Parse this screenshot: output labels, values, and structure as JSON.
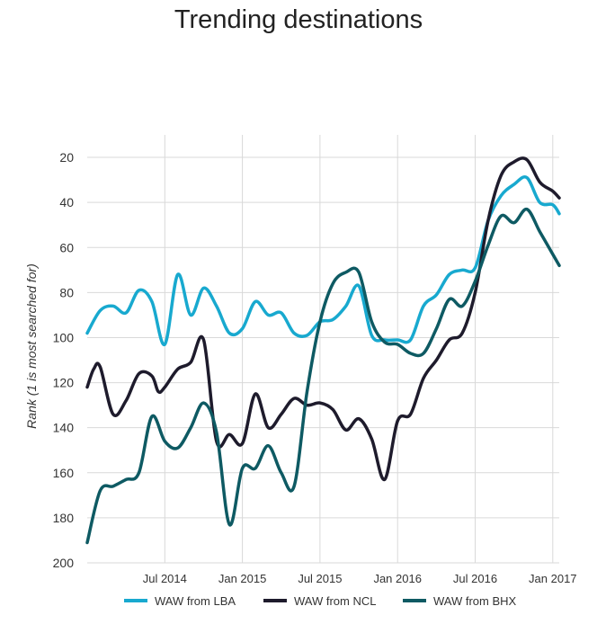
{
  "chart_data": {
    "type": "line",
    "title": "Trending destinations",
    "xlabel": "",
    "ylabel": "Rank (1 is most searched for)",
    "y_inverted": true,
    "ylim": [
      200,
      10
    ],
    "yticks": [
      20,
      40,
      60,
      80,
      100,
      120,
      140,
      160,
      180,
      200
    ],
    "xlim": [
      0,
      36.5
    ],
    "x_unit": "months since Jan 2014",
    "xticks": [
      {
        "label": "Jul 2014",
        "x": 6
      },
      {
        "label": "Jan 2015",
        "x": 12
      },
      {
        "label": "Jul 2015",
        "x": 18
      },
      {
        "label": "Jan 2016",
        "x": 24
      },
      {
        "label": "Jul 2016",
        "x": 30
      },
      {
        "label": "Jan 2017",
        "x": 36
      }
    ],
    "grid": true,
    "legend_position": "bottom",
    "series": [
      {
        "name": "WAW from LBA",
        "color": "#18A9CF",
        "points": [
          [
            0,
            98
          ],
          [
            1,
            88
          ],
          [
            2,
            86
          ],
          [
            3,
            89
          ],
          [
            4,
            79
          ],
          [
            5,
            84
          ],
          [
            6,
            103
          ],
          [
            7,
            72
          ],
          [
            8,
            90
          ],
          [
            9,
            78
          ],
          [
            10,
            86
          ],
          [
            11,
            98
          ],
          [
            12,
            96
          ],
          [
            13,
            84
          ],
          [
            14,
            90
          ],
          [
            15,
            89
          ],
          [
            16,
            98
          ],
          [
            17,
            99
          ],
          [
            18,
            93
          ],
          [
            19,
            92
          ],
          [
            20,
            86
          ],
          [
            21,
            77
          ],
          [
            22,
            99
          ],
          [
            23,
            101
          ],
          [
            24,
            101
          ],
          [
            25,
            101
          ],
          [
            26,
            86
          ],
          [
            27,
            81
          ],
          [
            28,
            72
          ],
          [
            29,
            70
          ],
          [
            30,
            69
          ],
          [
            31,
            48
          ],
          [
            32,
            37
          ],
          [
            33,
            32
          ],
          [
            34,
            29
          ],
          [
            35,
            40
          ],
          [
            36,
            41
          ],
          [
            36.5,
            45
          ]
        ]
      },
      {
        "name": "WAW from NCL",
        "color": "#1E1B2C",
        "points": [
          [
            0,
            122
          ],
          [
            0.5,
            114
          ],
          [
            1,
            113
          ],
          [
            2,
            134
          ],
          [
            3,
            128
          ],
          [
            4,
            116
          ],
          [
            5,
            117
          ],
          [
            5.5,
            124
          ],
          [
            6,
            122
          ],
          [
            7,
            114
          ],
          [
            8,
            111
          ],
          [
            9,
            101
          ],
          [
            10,
            146
          ],
          [
            11,
            143
          ],
          [
            12,
            147
          ],
          [
            13,
            125
          ],
          [
            14,
            140
          ],
          [
            15,
            134
          ],
          [
            16,
            127
          ],
          [
            17,
            130
          ],
          [
            18,
            129
          ],
          [
            19,
            132
          ],
          [
            20,
            141
          ],
          [
            21,
            136
          ],
          [
            22,
            145
          ],
          [
            23,
            163
          ],
          [
            24,
            137
          ],
          [
            25,
            134
          ],
          [
            26,
            118
          ],
          [
            27,
            110
          ],
          [
            28,
            101
          ],
          [
            29,
            98
          ],
          [
            30,
            80
          ],
          [
            31,
            48
          ],
          [
            32,
            28
          ],
          [
            33,
            22
          ],
          [
            34,
            21
          ],
          [
            35,
            31
          ],
          [
            36,
            35
          ],
          [
            36.5,
            38
          ]
        ]
      },
      {
        "name": "WAW from BHX",
        "color": "#0E5A63",
        "points": [
          [
            0,
            191
          ],
          [
            1,
            168
          ],
          [
            2,
            166
          ],
          [
            3,
            163
          ],
          [
            4,
            160
          ],
          [
            5,
            135
          ],
          [
            6,
            146
          ],
          [
            7,
            149
          ],
          [
            8,
            140
          ],
          [
            9,
            129
          ],
          [
            10,
            142
          ],
          [
            11,
            183
          ],
          [
            12,
            158
          ],
          [
            13,
            158
          ],
          [
            14,
            148
          ],
          [
            15,
            160
          ],
          [
            16,
            166
          ],
          [
            17,
            124
          ],
          [
            18,
            93
          ],
          [
            19,
            76
          ],
          [
            20,
            71
          ],
          [
            21,
            71
          ],
          [
            22,
            93
          ],
          [
            23,
            102
          ],
          [
            24,
            103
          ],
          [
            25,
            107
          ],
          [
            26,
            107
          ],
          [
            27,
            96
          ],
          [
            28,
            83
          ],
          [
            29,
            86
          ],
          [
            30,
            75
          ],
          [
            31,
            59
          ],
          [
            32,
            46
          ],
          [
            33,
            49
          ],
          [
            34,
            43
          ],
          [
            35,
            53
          ],
          [
            36,
            63
          ],
          [
            36.5,
            68
          ]
        ]
      }
    ]
  }
}
